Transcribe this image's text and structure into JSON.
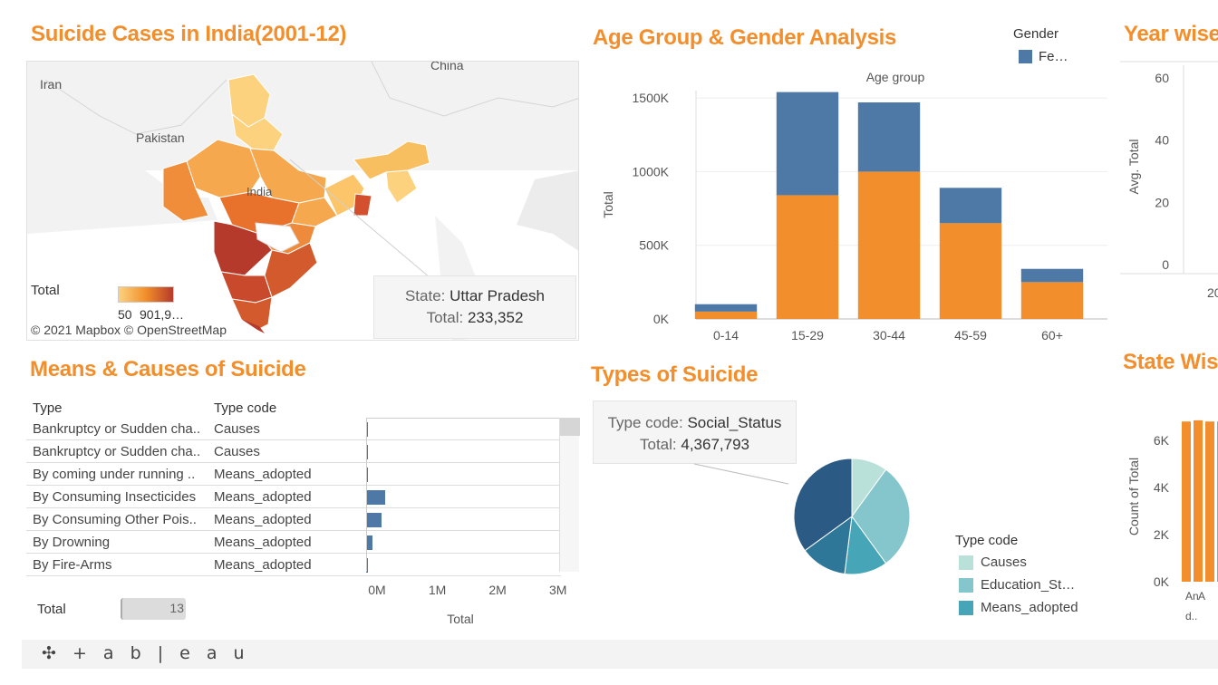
{
  "titles": {
    "map": "Suicide Cases in India(2001-12)",
    "age": "Age Group  & Gender Analysis",
    "year": "Year wise",
    "means": "Means & Causes of Suicide",
    "types": "Types of Suicide",
    "state": "State Wis"
  },
  "map": {
    "labels": [
      "Iran",
      "Pakistan",
      "China",
      "India"
    ],
    "legend_title": "Total",
    "legend_min": "50",
    "legend_max": "901,9…",
    "credits": "© 2021 Mapbox  © OpenStreetMap",
    "tooltip": {
      "state_label": "State:",
      "state_value": "Uttar Pradesh",
      "total_label": "Total:",
      "total_value": "233,352"
    },
    "colors": {
      "low": "#fcd27f",
      "high": "#b63a2b"
    }
  },
  "age_legend": {
    "title": "Gender",
    "item": "Fe…",
    "color": "#4e79a7"
  },
  "means_table": {
    "col_type": "Type",
    "col_code": "Type code",
    "rows": [
      {
        "type": "Bankruptcy or Sudden cha..",
        "code": "Causes",
        "value": 0.02
      },
      {
        "type": "Bankruptcy or Sudden cha..",
        "code": "Causes",
        "value": 0.005
      },
      {
        "type": "By coming under running ..",
        "code": "Means_adopted",
        "value": 0.02
      },
      {
        "type": "By Consuming Insecticides",
        "code": "Means_adopted",
        "value": 0.32
      },
      {
        "type": "By Consuming Other Pois..",
        "code": "Means_adopted",
        "value": 0.26
      },
      {
        "type": "By Drowning",
        "code": "Means_adopted",
        "value": 0.1
      },
      {
        "type": "By Fire-Arms",
        "code": "Means_adopted",
        "value": 0.01
      }
    ],
    "axis_ticks": [
      "0M",
      "1M",
      "2M",
      "3M"
    ],
    "axis_label": "Total",
    "filter_label": "Total",
    "filter_value": "13"
  },
  "types_tooltip": {
    "code_label": "Type code:",
    "code_value": "Social_Status",
    "total_label": "Total:",
    "total_value": "4,367,793"
  },
  "types_legend": {
    "title": "Type code",
    "items": [
      {
        "label": "Causes",
        "color": "#b9e1da"
      },
      {
        "label": "Education_St…",
        "color": "#84c6cc"
      },
      {
        "label": "Means_adopted",
        "color": "#47a5b8"
      }
    ]
  },
  "footer": {
    "logo": "✣ + a b | e a u"
  },
  "chart_data": [
    {
      "type": "bar",
      "title": "Age Group  & Gender Analysis",
      "xlabel": "Age group",
      "ylabel": "Total",
      "categories": [
        "0-14",
        "15-29",
        "30-44",
        "45-59",
        "60+"
      ],
      "series": [
        {
          "name": "",
          "values": [
            50000,
            840000,
            1000000,
            650000,
            250000
          ],
          "color": "#f28e2b"
        },
        {
          "name": "Fe…",
          "values": [
            50000,
            700000,
            470000,
            240000,
            90000
          ],
          "color": "#4e79a7"
        }
      ],
      "stacked": true,
      "ylim": [
        0,
        1550000
      ],
      "yticks": [
        0,
        500000,
        1000000,
        1500000
      ],
      "ytick_labels": [
        "0K",
        "500K",
        "1000K",
        "1500K"
      ]
    },
    {
      "type": "line",
      "title": "Year wise",
      "ylabel": "Avg. Total",
      "yticks": [
        0,
        20,
        40,
        60
      ],
      "ylim": [
        0,
        60
      ],
      "x_first_label": "20"
    },
    {
      "type": "pie",
      "title": "Types of Suicide",
      "slices": [
        {
          "label": "Causes",
          "value": 10,
          "color": "#b9e1da"
        },
        {
          "label": "Education_St…",
          "value": 30,
          "color": "#84c6cc"
        },
        {
          "label": "Means_adopted",
          "value": 12,
          "color": "#47a5b8"
        },
        {
          "label": "",
          "value": 13,
          "color": "#2f7799"
        },
        {
          "label": "Social_Status",
          "value": 35,
          "color": "#2b5b84"
        }
      ]
    },
    {
      "type": "bar",
      "title": "State Wis",
      "ylabel": "Count of Total",
      "yticks": [
        0,
        2000,
        4000,
        6000
      ],
      "ytick_labels": [
        "0K",
        "2K",
        "4K",
        "6K"
      ],
      "ylim": [
        0,
        7000
      ],
      "categories": [
        "An d..",
        "A",
        "",
        ""
      ],
      "values": [
        6800,
        6850,
        6800,
        6800
      ],
      "color": "#f28e2b"
    }
  ]
}
